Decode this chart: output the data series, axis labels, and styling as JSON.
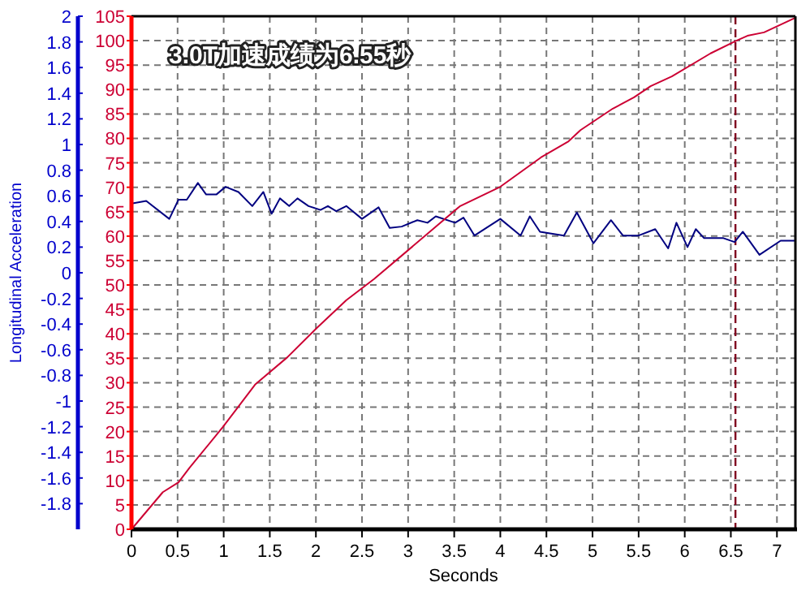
{
  "chart_data": {
    "type": "line",
    "title": "3.0T加速成绩为6.55秒",
    "xlabel": "Seconds",
    "ylabel": "Longitudinal Acceleration",
    "xlim": [
      0,
      7.2
    ],
    "xticks": [
      0,
      0.5,
      1,
      1.5,
      2,
      2.5,
      3,
      3.5,
      4,
      4.5,
      5,
      5.5,
      6,
      6.5,
      7
    ],
    "ylim": [
      -2,
      2
    ],
    "yticks": [
      -1.8,
      -1.6,
      -1.4,
      -1.2,
      -1,
      -0.8,
      -0.6,
      -0.4,
      -0.2,
      0,
      0.2,
      0.4,
      0.6,
      0.8,
      1,
      1.2,
      1.4,
      1.6,
      1.8,
      2
    ],
    "y2lim": [
      0,
      105
    ],
    "y2ticks": [
      0,
      5,
      10,
      15,
      20,
      25,
      30,
      35,
      40,
      45,
      50,
      55,
      60,
      65,
      70,
      75,
      80,
      85,
      90,
      95,
      100,
      105
    ],
    "grid": true,
    "line_style": "solid",
    "marker": "none",
    "ref_lines": [
      {
        "axis": "x",
        "value": 6.55,
        "color": "#800020",
        "line_style": "dashed"
      }
    ],
    "series": [
      {
        "color": "#000080",
        "axis": "y",
        "x": [
          0,
          0.16,
          0.41,
          0.51,
          0.6,
          0.72,
          0.81,
          0.92,
          1.02,
          1.16,
          1.31,
          1.43,
          1.52,
          1.61,
          1.71,
          1.8,
          1.92,
          2.05,
          2.13,
          2.22,
          2.33,
          2.5,
          2.68,
          2.8,
          2.93,
          3.1,
          3.21,
          3.3,
          3.51,
          3.6,
          3.72,
          4.0,
          4.22,
          4.32,
          4.43,
          4.69,
          4.83,
          5.01,
          5.2,
          5.33,
          5.5,
          5.68,
          5.82,
          5.91,
          6.03,
          6.12,
          6.21,
          6.42,
          6.54,
          6.63,
          6.81,
          7.04,
          7.2
        ],
        "values": [
          0.54,
          0.56,
          0.42,
          0.57,
          0.57,
          0.7,
          0.61,
          0.61,
          0.67,
          0.63,
          0.52,
          0.63,
          0.46,
          0.58,
          0.52,
          0.58,
          0.52,
          0.49,
          0.52,
          0.48,
          0.52,
          0.42,
          0.51,
          0.35,
          0.36,
          0.41,
          0.39,
          0.44,
          0.39,
          0.43,
          0.29,
          0.42,
          0.29,
          0.44,
          0.32,
          0.29,
          0.47,
          0.23,
          0.41,
          0.29,
          0.29,
          0.34,
          0.19,
          0.39,
          0.2,
          0.34,
          0.27,
          0.27,
          0.24,
          0.32,
          0.14,
          0.25,
          0.25
        ]
      },
      {
        "color": "#cc0033",
        "axis": "y2",
        "x": [
          0,
          0.34,
          0.51,
          0.63,
          0.99,
          1.34,
          1.69,
          2.01,
          2.33,
          2.63,
          2.98,
          3.56,
          4.0,
          4.44,
          4.74,
          4.87,
          5.22,
          5.45,
          5.63,
          5.86,
          6.28,
          6.56,
          6.68,
          6.86,
          7.2
        ],
        "values": [
          0,
          7.6,
          9.6,
          12.6,
          20.9,
          29.6,
          35.2,
          41.2,
          46.9,
          51.2,
          56.8,
          66.1,
          70.1,
          76.1,
          79.4,
          81.7,
          86.1,
          88.4,
          90.7,
          92.7,
          97.4,
          100,
          101,
          101.7,
          104.7
        ]
      }
    ]
  }
}
